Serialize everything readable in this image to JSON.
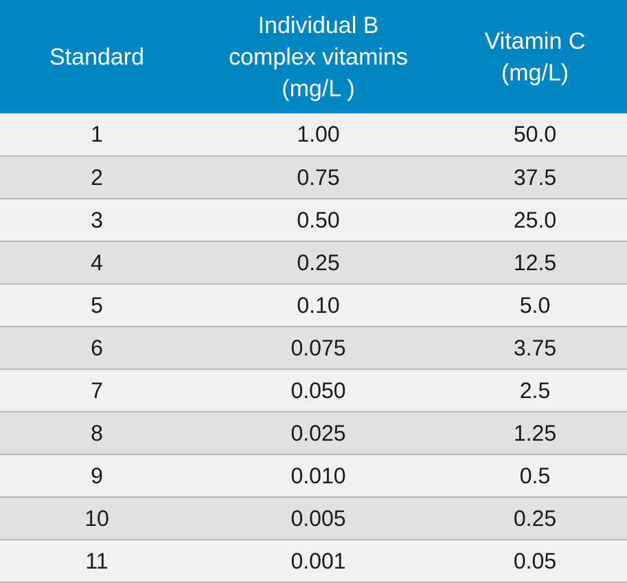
{
  "table": {
    "headers": {
      "standard": [
        "Standard"
      ],
      "b_vitamins": [
        "Individual B",
        "complex vitamins",
        "(mg/L )"
      ],
      "vitamin_c": [
        "Vitamin C",
        "(mg/L)"
      ]
    },
    "rows": [
      [
        "1",
        "1.00",
        "50.0"
      ],
      [
        "2",
        "0.75",
        "37.5"
      ],
      [
        "3",
        "0.50",
        "25.0"
      ],
      [
        "4",
        "0.25",
        "12.5"
      ],
      [
        "5",
        "0.10",
        "5.0"
      ],
      [
        "6",
        "0.075",
        "3.75"
      ],
      [
        "7",
        "0.050",
        "2.5"
      ],
      [
        "8",
        "0.025",
        "1.25"
      ],
      [
        "9",
        "0.010",
        "0.5"
      ],
      [
        "10",
        "0.005",
        "0.25"
      ],
      [
        "11",
        "0.001",
        "0.05"
      ]
    ]
  },
  "colors": {
    "header_bg": "#0086c2",
    "header_text": "#ffffff",
    "row_light": "#f2f0f0",
    "row_dark": "#e2e1e1"
  }
}
